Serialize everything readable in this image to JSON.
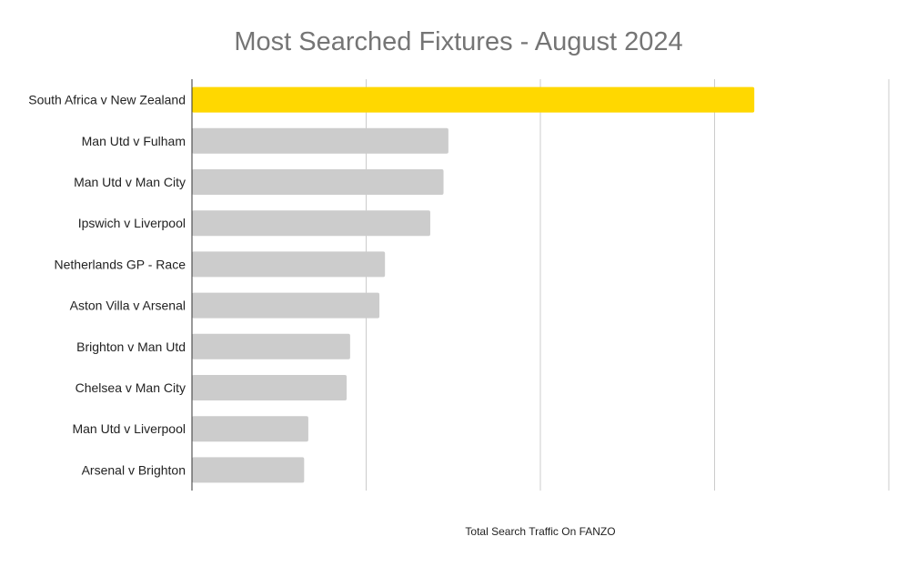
{
  "chart_data": {
    "type": "bar",
    "orientation": "horizontal",
    "title": "Most Searched Fixtures - August 2024",
    "xlabel": "Total Search Traffic On FANZO",
    "ylabel": "",
    "xlim": [
      0,
      1
    ],
    "grid": true,
    "tick_labels_shown": false,
    "categories": [
      "South Africa v New Zealand",
      "Man Utd v Fulham",
      "Man Utd v Man City",
      "Ipswich v Liverpool",
      "Netherlands GP - Race",
      "Aston Villa v Arsenal",
      "Brighton v Man Utd",
      "Chelsea v Man City",
      "Man Utd v Liverpool",
      "Arsenal v Brighton"
    ],
    "values": [
      0.807,
      0.368,
      0.361,
      0.342,
      0.277,
      0.269,
      0.227,
      0.222,
      0.167,
      0.161
    ],
    "colors": {
      "highlight": "#FFD800",
      "default": "#CCCCCC",
      "grid": "#CCCCCC",
      "axis": "#333333"
    },
    "highlight_index": 0
  }
}
